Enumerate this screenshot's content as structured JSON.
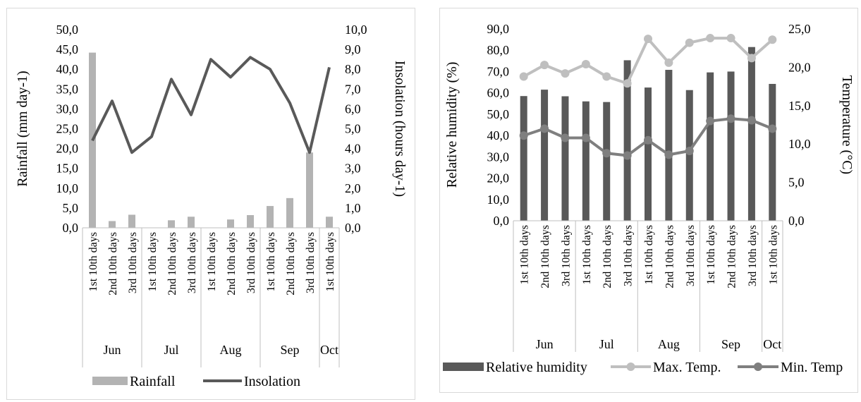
{
  "colors": {
    "rainfall": "#b3b3b3",
    "insolation": "#595959",
    "humidity": "#595959",
    "max_temp": "#bfbfbf",
    "min_temp": "#7f7f7f",
    "axis": "#bfbfbf"
  },
  "chart_data": [
    {
      "type": "bar+line",
      "categories": [
        "1st  10th days",
        "2nd 10th days",
        "3rd 10th days",
        "1st  10th days",
        "2nd 10th days",
        "3rd 10th days",
        "1st  10th days",
        "2nd 10th days",
        "3rd 10th days",
        "1st  10th days",
        "2nd 10th days",
        "3rd 10th days",
        "1st  10th days"
      ],
      "groups": [
        {
          "label": "Jun",
          "count": 3
        },
        {
          "label": "Jul",
          "count": 3
        },
        {
          "label": "Aug",
          "count": 3
        },
        {
          "label": "Sep",
          "count": 3
        },
        {
          "label": "Oct",
          "count": 1
        }
      ],
      "series": [
        {
          "name": "Rainfall",
          "kind": "bar",
          "axis": "left",
          "values": [
            44.2,
            1.7,
            3.3,
            0,
            1.9,
            2.8,
            0,
            2.1,
            3.2,
            5.5,
            7.5,
            19.0,
            2.8
          ]
        },
        {
          "name": "Insolation",
          "kind": "line",
          "axis": "right",
          "values": [
            4.4,
            6.4,
            3.8,
            4.6,
            7.5,
            5.7,
            8.5,
            7.6,
            8.6,
            8.0,
            6.3,
            3.8,
            8.1
          ]
        }
      ],
      "ylabel": "Rainfall (mm day-1)",
      "y2label": "Insolation (hours day-1)",
      "ylim": [
        0,
        50
      ],
      "y2lim": [
        0,
        10
      ],
      "yticks": [
        "0,0",
        "5,0",
        "10,0",
        "15,0",
        "20,0",
        "25,0",
        "30,0",
        "35,0",
        "40,0",
        "45,0",
        "50,0"
      ],
      "y2ticks": [
        "0,0",
        "1,0",
        "2,0",
        "3,0",
        "4,0",
        "5,0",
        "6,0",
        "7,0",
        "8,0",
        "9,0",
        "10,0"
      ],
      "legend_position": "bottom"
    },
    {
      "type": "bar+line",
      "categories": [
        "1st  10th days",
        "2nd 10th days",
        "3rd 10th days",
        "1st  10th days",
        "2nd 10th days",
        "3rd 10th days",
        "1st  10th days",
        "2nd 10th days",
        "3rd 10th days",
        "1st  10th days",
        "2nd 10th days",
        "3rd 10th days",
        "1st  10th days"
      ],
      "groups": [
        {
          "label": "Jun",
          "count": 3
        },
        {
          "label": "Jul",
          "count": 3
        },
        {
          "label": "Aug",
          "count": 3
        },
        {
          "label": "Sep",
          "count": 3
        },
        {
          "label": "Oct",
          "count": 1
        }
      ],
      "series": [
        {
          "name": "Relative humidity",
          "kind": "bar",
          "axis": "left",
          "values": [
            58.5,
            61.5,
            58.4,
            56.0,
            55.7,
            75.3,
            62.5,
            70.8,
            61.3,
            69.6,
            70.0,
            81.5,
            64.2
          ]
        },
        {
          "name": "Max. Temp.",
          "kind": "line",
          "axis": "right",
          "values": [
            18.8,
            20.3,
            19.2,
            20.4,
            18.8,
            17.9,
            23.7,
            20.6,
            23.2,
            23.8,
            23.8,
            21.2,
            23.6
          ]
        },
        {
          "name": "Min. Temp",
          "kind": "line",
          "axis": "right",
          "values": [
            11.1,
            12.0,
            10.8,
            10.8,
            8.8,
            8.5,
            10.5,
            8.6,
            9.1,
            13.0,
            13.3,
            13.1,
            12.0
          ]
        }
      ],
      "ylabel": "Relative humidity (%)",
      "y2label": "Temperature (°C)",
      "ylim": [
        0,
        90
      ],
      "y2lim": [
        0,
        25
      ],
      "yticks": [
        "0,0",
        "10,0",
        "20,0",
        "30,0",
        "40,0",
        "50,0",
        "60,0",
        "70,0",
        "80,0",
        "90,0"
      ],
      "y2ticks": [
        "0,0",
        "5,0",
        "10,0",
        "15,0",
        "20,0",
        "25,0"
      ],
      "legend_position": "bottom"
    }
  ]
}
